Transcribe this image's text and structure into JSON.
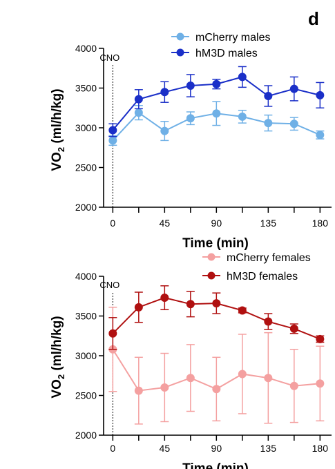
{
  "panel_label": "d",
  "chart_data": [
    {
      "type": "line",
      "xlabel": "Time (min)",
      "ylabel": "VO",
      "ylabel_sub": "2",
      "ylabel_unit": " (ml/h/kg)",
      "xlim": [
        -8,
        190
      ],
      "ylim": [
        2000,
        4000
      ],
      "x_ticks": [
        0,
        45,
        90,
        135,
        180
      ],
      "x_minor_ticks": [
        22.5,
        67.5,
        112.5,
        157.5
      ],
      "y_ticks": [
        2000,
        2500,
        3000,
        3500,
        4000
      ],
      "annotation": "CNO",
      "annotation_x": 0,
      "x": [
        0,
        22.5,
        45,
        67.5,
        90,
        112.5,
        135,
        157.5,
        180
      ],
      "series": [
        {
          "name": "mCherry males",
          "color": "#6fb0e6",
          "values": [
            2840,
            3190,
            2960,
            3120,
            3180,
            3140,
            3060,
            3050,
            2910
          ],
          "errors": [
            60,
            90,
            120,
            80,
            150,
            80,
            100,
            80,
            50
          ]
        },
        {
          "name": "hM3D males",
          "color": "#1a2fc8",
          "values": [
            2970,
            3360,
            3450,
            3530,
            3550,
            3640,
            3400,
            3490,
            3410
          ],
          "errors": [
            80,
            120,
            130,
            140,
            60,
            130,
            130,
            150,
            160
          ]
        }
      ]
    },
    {
      "type": "line",
      "xlabel": "Time (min)",
      "ylabel": "VO",
      "ylabel_sub": "2",
      "ylabel_unit": " (ml/h/kg)",
      "xlim": [
        -8,
        190
      ],
      "ylim": [
        2000,
        4000
      ],
      "x_ticks": [
        0,
        45,
        90,
        135,
        180
      ],
      "x_minor_ticks": [
        22.5,
        67.5,
        112.5,
        157.5
      ],
      "y_ticks": [
        2000,
        2500,
        3000,
        3500,
        4000
      ],
      "annotation": "CNO",
      "annotation_x": 0,
      "x": [
        0,
        22.5,
        45,
        67.5,
        90,
        112.5,
        135,
        157.5,
        180
      ],
      "series": [
        {
          "name": "mCherry females",
          "color": "#f4a0a0",
          "values": [
            3080,
            2560,
            2600,
            2720,
            2580,
            2770,
            2720,
            2620,
            2650
          ],
          "errors": [
            530,
            420,
            430,
            420,
            400,
            500,
            570,
            460,
            470
          ]
        },
        {
          "name": "hM3D females",
          "color": "#b01010",
          "values": [
            3280,
            3610,
            3730,
            3650,
            3660,
            3570,
            3430,
            3340,
            3210
          ],
          "errors": [
            200,
            190,
            150,
            160,
            130,
            30,
            100,
            60,
            40
          ]
        }
      ]
    }
  ]
}
